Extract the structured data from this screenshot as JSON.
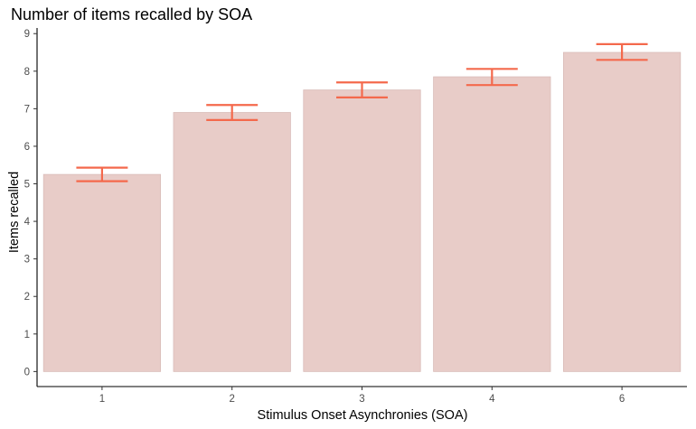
{
  "chart_data": {
    "type": "bar",
    "title": "Number of items recalled by SOA",
    "xlabel": "Stimulus Onset Asynchronies (SOA)",
    "ylabel": "Items recalled",
    "categories": [
      "1",
      "2",
      "3",
      "4",
      "6"
    ],
    "values": [
      5.25,
      6.9,
      7.5,
      7.85,
      8.5
    ],
    "error_bars": [
      {
        "low": 5.07,
        "high": 5.43
      },
      {
        "low": 6.7,
        "high": 7.1
      },
      {
        "low": 7.3,
        "high": 7.7
      },
      {
        "low": 7.63,
        "high": 8.06
      },
      {
        "low": 8.3,
        "high": 8.72
      }
    ],
    "ylim": [
      -0.4,
      9.15
    ],
    "yticks": [
      0,
      1,
      2,
      3,
      4,
      5,
      6,
      7,
      8,
      9
    ],
    "grid": false,
    "legend": "none",
    "colors": {
      "bar_fill": "#e8ccc8",
      "bar_stroke": "#d9bcb8",
      "error_bar": "#f4694c",
      "axis": "#000000",
      "tick_label": "#4d4d4d"
    }
  }
}
